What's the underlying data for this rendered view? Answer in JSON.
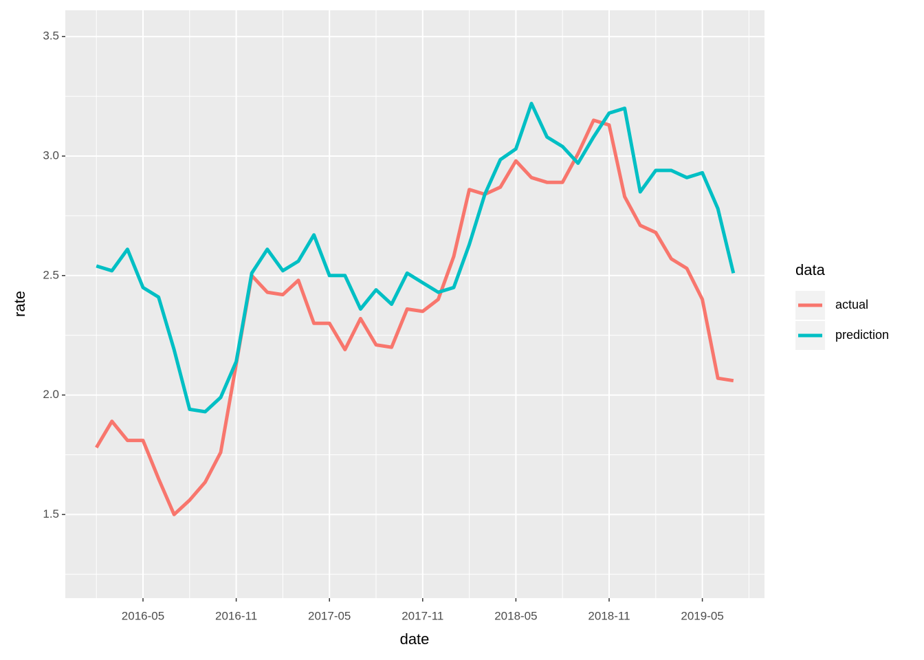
{
  "chart_data": {
    "type": "line",
    "x_label": "date",
    "y_label": "rate",
    "x": [
      "2016-02",
      "2016-03",
      "2016-04",
      "2016-05",
      "2016-06",
      "2016-07",
      "2016-08",
      "2016-09",
      "2016-10",
      "2016-11",
      "2016-12",
      "2017-01",
      "2017-02",
      "2017-03",
      "2017-04",
      "2017-05",
      "2017-06",
      "2017-07",
      "2017-08",
      "2017-09",
      "2017-10",
      "2017-11",
      "2017-12",
      "2018-01",
      "2018-02",
      "2018-03",
      "2018-04",
      "2018-05",
      "2018-06",
      "2018-07",
      "2018-08",
      "2018-09",
      "2018-10",
      "2018-11",
      "2018-12",
      "2019-01",
      "2019-02",
      "2019-03",
      "2019-04",
      "2019-05",
      "2019-06",
      "2019-07"
    ],
    "series": [
      {
        "name": "actual",
        "color": "#f8766d",
        "values": [
          1.78,
          1.89,
          1.81,
          1.81,
          1.65,
          1.5,
          1.56,
          1.635,
          1.76,
          2.13,
          2.5,
          2.43,
          2.42,
          2.48,
          2.3,
          2.3,
          2.19,
          2.32,
          2.21,
          2.2,
          2.36,
          2.35,
          2.4,
          2.58,
          2.86,
          2.84,
          2.87,
          2.98,
          2.91,
          2.89,
          2.89,
          3.01,
          3.15,
          3.13,
          2.83,
          2.71,
          2.68,
          2.57,
          2.53,
          2.4,
          2.07,
          2.06
        ]
      },
      {
        "name": "prediction",
        "color": "#00bfc4",
        "values": [
          2.54,
          2.52,
          2.61,
          2.45,
          2.41,
          2.19,
          1.94,
          1.93,
          1.99,
          2.14,
          2.51,
          2.61,
          2.52,
          2.56,
          2.67,
          2.5,
          2.5,
          2.36,
          2.44,
          2.38,
          2.51,
          2.47,
          2.43,
          2.45,
          2.63,
          2.84,
          2.985,
          3.03,
          3.22,
          3.08,
          3.04,
          2.97,
          3.08,
          3.18,
          3.2,
          2.85,
          2.94,
          2.94,
          2.91,
          2.93,
          2.78,
          2.51
        ]
      }
    ],
    "xlim": [
      "2015-12",
      "2019-09"
    ],
    "xticks": [
      "2016-05",
      "2016-11",
      "2017-05",
      "2017-11",
      "2018-05",
      "2018-11",
      "2019-05"
    ],
    "ylim": [
      1.15,
      3.61
    ],
    "yticks": [
      1.5,
      {
        "value": 2,
        "label": "2.0"
      },
      2.5,
      {
        "value": 3,
        "label": "3.0"
      },
      3.5
    ],
    "grid": true,
    "legend": {
      "title": "data",
      "position": "right"
    }
  }
}
